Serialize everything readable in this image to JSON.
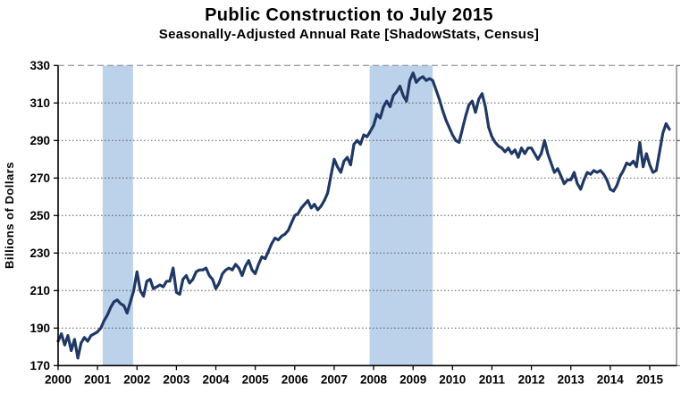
{
  "page": {
    "background": "#ffffff"
  },
  "chart_data": {
    "type": "line",
    "title": "Public Construction to July 2015",
    "subtitle": "Seasonally-Adjusted Annual Rate [ShadowStats, Census]",
    "xlabel": "",
    "ylabel": "Billions of Dollars",
    "ylim": [
      170,
      330
    ],
    "ytick_step": 20,
    "yticks": [
      170,
      190,
      210,
      230,
      250,
      270,
      290,
      310,
      330
    ],
    "xticks": [
      2000,
      2001,
      2002,
      2003,
      2004,
      2005,
      2006,
      2007,
      2008,
      2009,
      2010,
      2011,
      2012,
      2013,
      2014,
      2015
    ],
    "grid": true,
    "legend_position": "none",
    "line_color": "#1f3864",
    "grid_color": "#555555",
    "top_gridline_color": "#9aa0a6",
    "axis_color": "#000000",
    "recession_band_color": "#bcd2ea",
    "recession_bands": [
      [
        2001.13,
        2001.9
      ],
      [
        2007.9,
        2009.5
      ]
    ],
    "series": [
      {
        "name": "Public Construction, Seasonally-Adjusted Annual Rate",
        "start": "2000-01",
        "end": "2015-07",
        "frequency": "monthly",
        "values": [
          183,
          187,
          181,
          186,
          178,
          184,
          174,
          182,
          185,
          183,
          186,
          187,
          188,
          190,
          194,
          197,
          201,
          204,
          205,
          203,
          202,
          198,
          204,
          210,
          220,
          210,
          207,
          215,
          216,
          211,
          212,
          213,
          212,
          215,
          215,
          222,
          209,
          208,
          216,
          218,
          214,
          216,
          220,
          221,
          221,
          222,
          218,
          216,
          211,
          214,
          219,
          221,
          222,
          221,
          224,
          222,
          218,
          223,
          226,
          221,
          219,
          224,
          228,
          227,
          231,
          235,
          238,
          237,
          239,
          240,
          242,
          246,
          250,
          251,
          254,
          256,
          258,
          254,
          256,
          253,
          255,
          258,
          262,
          271,
          280,
          276,
          273,
          279,
          281,
          277,
          288,
          290,
          288,
          293,
          292,
          295,
          298,
          304,
          302,
          308,
          311,
          308,
          314,
          316,
          319,
          314,
          311,
          322,
          326,
          321,
          323,
          324,
          322,
          323,
          322,
          317,
          312,
          306,
          301,
          297,
          293,
          290,
          289,
          296,
          303,
          309,
          311,
          305,
          312,
          315,
          308,
          297,
          292,
          289,
          287,
          286,
          284,
          286,
          283,
          285,
          281,
          286,
          283,
          286,
          286,
          283,
          280,
          283,
          290,
          283,
          278,
          273,
          275,
          271,
          267,
          269,
          269,
          273,
          267,
          264,
          269,
          273,
          272,
          274,
          273,
          274,
          272,
          269,
          264,
          263,
          266,
          271,
          274,
          278,
          277,
          279,
          276,
          289,
          276,
          283,
          277,
          273,
          274,
          284,
          294,
          299,
          296
        ]
      }
    ]
  }
}
